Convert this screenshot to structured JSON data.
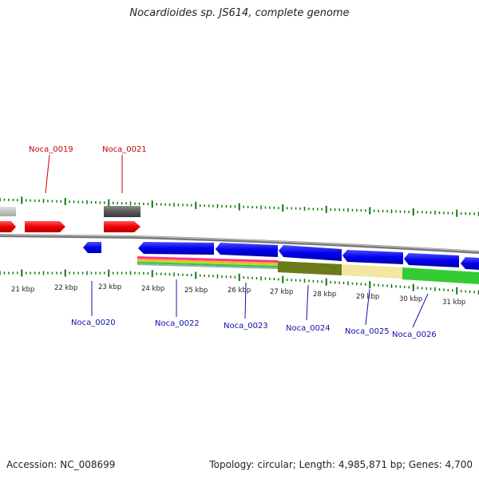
{
  "title": "Nocardioides sp. JS614, complete genome",
  "footer": {
    "accession": "Accession: NC_008699",
    "stats": "Topology: circular; Length: 4,985,871 bp; Genes: 4,700"
  },
  "colors": {
    "tick": "#0a7a0a",
    "label_top": "#cc0000",
    "label_bottom": "#1010aa",
    "backbone": "#888888"
  },
  "kbp_labels": [
    "21 kbp",
    "22 kbp",
    "23 kbp",
    "24 kbp",
    "25 kbp",
    "26 kbp",
    "27 kbp",
    "28 kbp",
    "29 kbp",
    "30 kbp",
    "31 kbp"
  ],
  "genes_top": [
    "Noca_0019",
    "Noca_0021"
  ],
  "genes_bottom": [
    "Noca_0020",
    "Noca_0022",
    "Noca_0023",
    "Noca_0024",
    "Noca_0025",
    "Noca_0026"
  ]
}
